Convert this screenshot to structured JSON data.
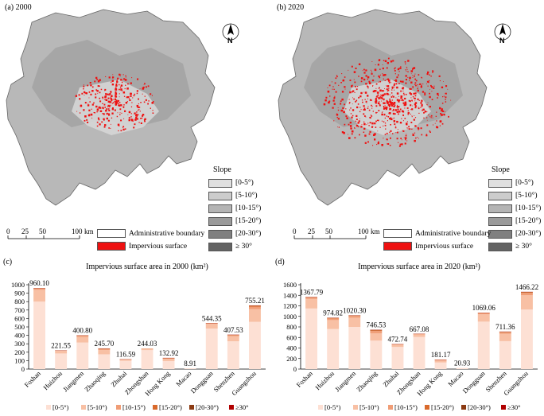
{
  "maps": [
    {
      "label": "(a) 2000",
      "north": "N",
      "slope_title": "Slope",
      "slope_classes": [
        "[0-5°)",
        "[5-10°)",
        "[10-15°)",
        "[15-20°)",
        "[20-30°)",
        "≥ 30°"
      ],
      "slope_colors": [
        "#e0e0e0",
        "#cccccc",
        "#b4b4b4",
        "#9a9a9a",
        "#808080",
        "#636363"
      ],
      "legend_boundary": "Administrative boundary",
      "legend_impervious": "Impervious surface",
      "impervious_color": "#ee1111",
      "scale_ticks": [
        "0",
        "25",
        "50",
        "100"
      ],
      "scale_unit": "km"
    },
    {
      "label": "(b) 2020",
      "north": "N",
      "slope_title": "Slope",
      "slope_classes": [
        "[0-5°)",
        "[5-10°)",
        "[10-15°)",
        "[15-20°)",
        "[20-30°)",
        "≥ 30°"
      ],
      "slope_colors": [
        "#e0e0e0",
        "#cccccc",
        "#b4b4b4",
        "#9a9a9a",
        "#808080",
        "#636363"
      ],
      "legend_boundary": "Administrative boundary",
      "legend_impervious": "Impervious surface",
      "impervious_color": "#ee1111",
      "scale_ticks": [
        "0",
        "25",
        "50",
        "100"
      ],
      "scale_unit": "km"
    }
  ],
  "chart_data": [
    {
      "type": "bar",
      "label": "(c)",
      "title": "Impervious surface area in 2000 (km²)",
      "categories": [
        "Foshan",
        "Huizhou",
        "Jiangmen",
        "Zhaoqing",
        "Zhuhai",
        "Zhongshan",
        "Hong Kong",
        "Macao",
        "Dongguan",
        "Shenzhen",
        "Guangzhou"
      ],
      "totals": [
        "960.10",
        "221.55",
        "400.80",
        "245.70",
        "116.59",
        "244.03",
        "132.92",
        "8.91",
        "544.35",
        "407.53",
        "755.21"
      ],
      "series": [
        {
          "name": "[0-5°)",
          "color": "#fde0d4",
          "values": [
            800,
            185,
            315,
            175,
            98,
            225,
            95,
            8.91,
            480,
            330,
            560
          ]
        },
        {
          "name": "[5-10°)",
          "color": "#f8c0a4",
          "values": [
            140,
            30,
            65,
            50,
            14,
            17,
            25,
            0,
            55,
            60,
            150
          ]
        },
        {
          "name": "[10-15°)",
          "color": "#f09d76",
          "values": [
            15,
            5,
            15,
            13,
            3,
            2,
            8,
            0,
            7,
            12,
            30
          ]
        },
        {
          "name": "[15-20°)",
          "color": "#d96a2c",
          "values": [
            3,
            1,
            3.8,
            4.5,
            1,
            0.03,
            3,
            0,
            1.5,
            3.5,
            10
          ]
        },
        {
          "name": "[20-30°)",
          "color": "#8b3a12",
          "values": [
            1.5,
            0.4,
            1.5,
            2.5,
            0.4,
            0,
            1.3,
            0,
            0.6,
            1.5,
            4
          ]
        },
        {
          "name": "≥30°",
          "color": "#b00000",
          "values": [
            0.6,
            0.15,
            0.5,
            0.7,
            0.19,
            0,
            0.62,
            0,
            0.25,
            0.53,
            1.21
          ]
        }
      ],
      "ylim": [
        0,
        1000
      ],
      "yticks": [
        "0",
        "100",
        "200",
        "300",
        "400",
        "500",
        "600",
        "700",
        "800",
        "900",
        "1000"
      ]
    },
    {
      "type": "bar",
      "label": "(d)",
      "title": "Impervious surface area in 2020 (km²)",
      "categories": [
        "Foshan",
        "Huizhou",
        "Jiangmen",
        "Zhaoqing",
        "Zhuhai",
        "Zhongshan",
        "Hong Kong",
        "Macao",
        "Dongguan",
        "Shenzhen",
        "Guangzhou"
      ],
      "totals": [
        "1367.79",
        "974.82",
        "1020.30",
        "746.53",
        "472.74",
        "667.08",
        "181.17",
        "20.93",
        "1069.06",
        "711.36",
        "1466.22"
      ],
      "series": [
        {
          "name": "[0-5°)",
          "color": "#fde0d4",
          "values": [
            1150,
            760,
            800,
            540,
            420,
            610,
            125,
            20.93,
            900,
            530,
            1130
          ]
        },
        {
          "name": "[5-10°)",
          "color": "#f8c0a4",
          "values": [
            180,
            170,
            175,
            140,
            40,
            48,
            38,
            0,
            140,
            140,
            270
          ]
        },
        {
          "name": "[10-15°)",
          "color": "#f09d76",
          "values": [
            28,
            30,
            33,
            42,
            8,
            7,
            11,
            0,
            22,
            28,
            45
          ]
        },
        {
          "name": "[15-20°)",
          "color": "#d96a2c",
          "values": [
            6,
            9,
            8,
            15,
            3,
            1.5,
            4,
            0,
            5,
            8,
            14
          ]
        },
        {
          "name": "[20-30°)",
          "color": "#8b3a12",
          "values": [
            3,
            4.5,
            3.3,
            7.5,
            1.3,
            0.5,
            2.2,
            0,
            1.6,
            4,
            5.5
          ]
        },
        {
          "name": "≥30°",
          "color": "#b00000",
          "values": [
            0.79,
            1.32,
            1.0,
            2.03,
            0.44,
            0.08,
            0.97,
            0,
            0.46,
            1.36,
            1.72
          ]
        }
      ],
      "ylim": [
        0,
        1600
      ],
      "yticks": [
        "0",
        "200",
        "400",
        "600",
        "800",
        "1000",
        "1200",
        "1400",
        "1600"
      ]
    }
  ]
}
